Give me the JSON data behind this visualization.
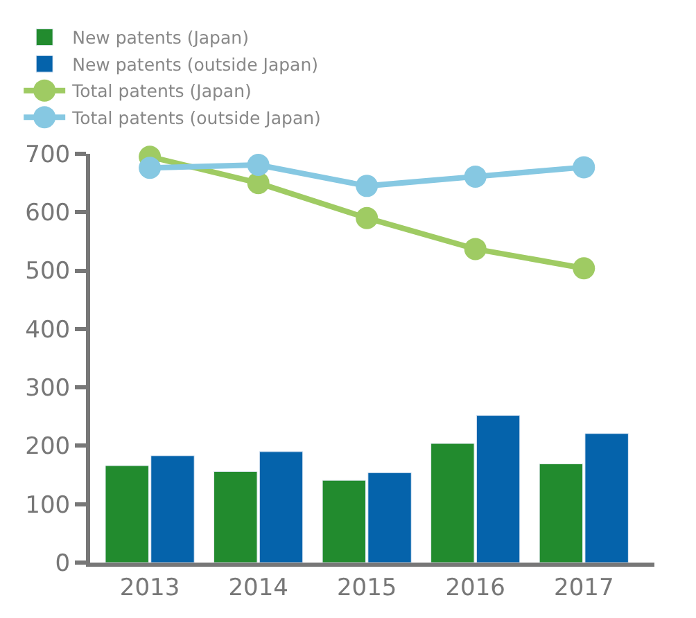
{
  "chart_data": {
    "type": "bar",
    "categories": [
      "2013",
      "2014",
      "2015",
      "2016",
      "2017"
    ],
    "series": [
      {
        "name": "New patents (Japan)",
        "color": "#228b2e",
        "values": [
          166,
          156,
          141,
          204,
          169
        ]
      },
      {
        "name": "New patents (outside Japan)",
        "color": "#0563ab",
        "values": [
          183,
          190,
          154,
          252,
          221
        ]
      },
      {
        "name": "Total patents (Japan)",
        "type": "line",
        "color": "#9fcb63",
        "values": [
          695,
          650,
          590,
          537,
          504
        ]
      },
      {
        "name": "Total patents (outside Japan)",
        "type": "line",
        "color": "#86c8e2",
        "values": [
          676,
          681,
          645,
          661,
          677
        ]
      }
    ],
    "ylim": [
      0,
      700
    ],
    "yticks": [
      0,
      100,
      200,
      300,
      400,
      500,
      600,
      700
    ],
    "grid": false,
    "legend": "top",
    "marker": "circle",
    "line_style": "solid"
  }
}
